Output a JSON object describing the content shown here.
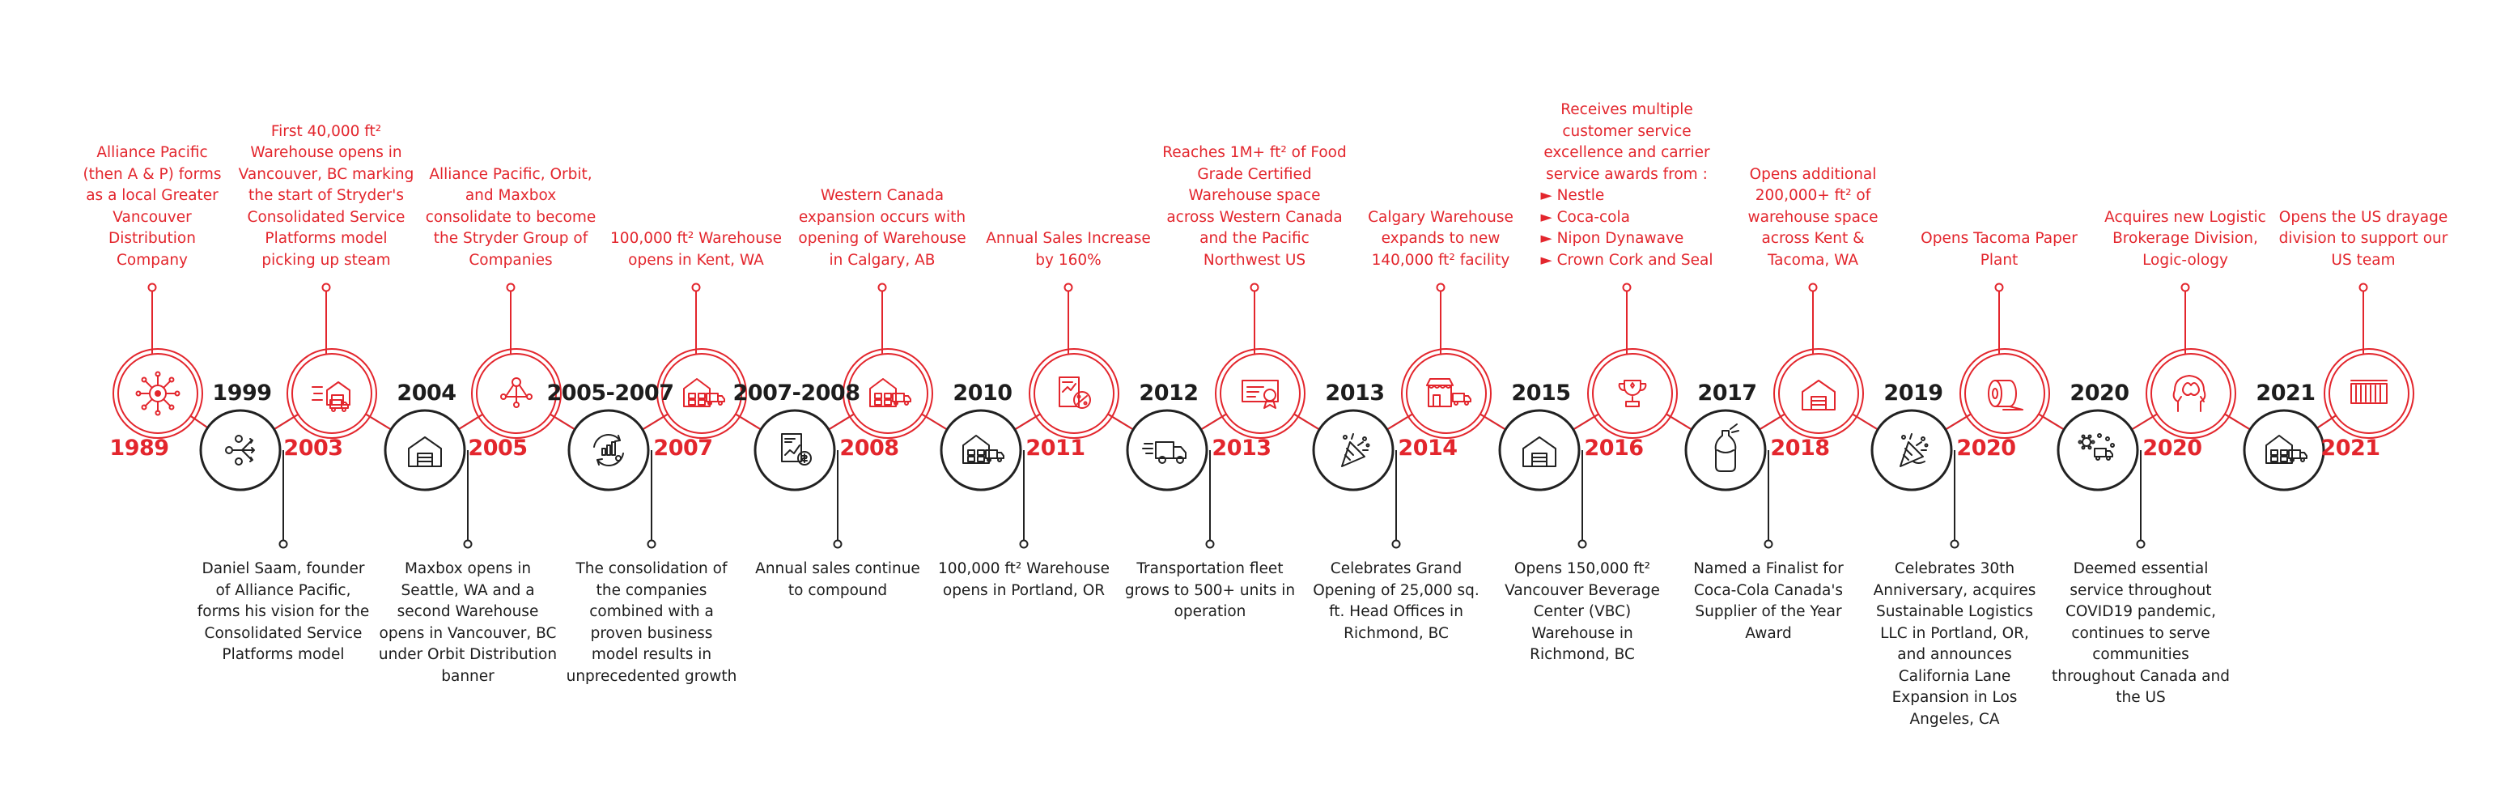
{
  "colors": {
    "red": "#e3262d",
    "black": "#222222"
  },
  "events": [
    {
      "year": "1989",
      "color": "red",
      "pos": "up",
      "icon": "ships-wheel-network-icon",
      "lines": [
        "Alliance Pacific",
        "(then A & P) forms",
        "as a local Greater",
        "Vancouver",
        "Distribution",
        "Company"
      ]
    },
    {
      "year": "1999",
      "color": "black",
      "pos": "down",
      "icon": "vision-arrows-icon",
      "lines": [
        "Daniel Saam, founder",
        "of Alliance Pacific,",
        "forms his vision for the",
        "Consolidated Service",
        "Platforms model"
      ]
    },
    {
      "year": "2003",
      "color": "red",
      "pos": "up",
      "icon": "warehouse-launch-icon",
      "lines": [
        "First 40,000 ft² ",
        "Warehouse opens in",
        "Vancouver, BC marking",
        "the start of Stryder's",
        "Consolidated Service",
        "Platforms model",
        "picking up steam"
      ]
    },
    {
      "year": "2004",
      "color": "black",
      "pos": "down",
      "icon": "warehouse-icon",
      "lines": [
        "Maxbox opens in",
        "Seattle, WA and a",
        "second Warehouse",
        "opens in Vancouver, BC",
        "under Orbit Distribution",
        "banner"
      ]
    },
    {
      "year": "2005",
      "color": "red",
      "pos": "up",
      "icon": "merge-network-icon",
      "lines": [
        "Alliance Pacific, Orbit,",
        "and Maxbox",
        "consolidate to become",
        "the Stryder Group of",
        "Companies"
      ]
    },
    {
      "year": "2005-2007",
      "color": "black",
      "pos": "down",
      "icon": "growth-cycle-icon",
      "lines": [
        "The consolidation of",
        "the companies",
        "combined with a",
        "proven business",
        "model results in",
        "unprecedented growth"
      ]
    },
    {
      "year": "2007",
      "color": "red",
      "pos": "up",
      "icon": "warehouse-truck-icon",
      "lines": [
        "100,000 ft² Warehouse",
        "opens in Kent, WA"
      ]
    },
    {
      "year": "2007-2008",
      "color": "black",
      "pos": "down",
      "icon": "sales-report-icon",
      "lines": [
        "Annual sales continue",
        "to compound"
      ]
    },
    {
      "year": "2008",
      "color": "red",
      "pos": "up",
      "icon": "warehouse-truck-icon",
      "lines": [
        "Western Canada",
        "expansion occurs with",
        "opening of Warehouse",
        "in Calgary, AB"
      ]
    },
    {
      "year": "2010",
      "color": "black",
      "pos": "down",
      "icon": "warehouse-truck-icon",
      "lines": [
        "100,000 ft² Warehouse",
        "opens in Portland, OR"
      ]
    },
    {
      "year": "2011",
      "color": "red",
      "pos": "up",
      "icon": "sales-percent-icon",
      "lines": [
        "Annual Sales Increase",
        "by 160%"
      ]
    },
    {
      "year": "2012",
      "color": "black",
      "pos": "down",
      "icon": "delivery-truck-icon",
      "lines": [
        "Transportation fleet",
        "grows to 500+ units in",
        "operation"
      ]
    },
    {
      "year": "2013",
      "color": "red",
      "pos": "up",
      "icon": "certificate-icon",
      "lines": [
        "Reaches 1M+ ft² of Food",
        "Grade Certified",
        "Warehouse space",
        "across Western Canada",
        "and the Pacific",
        "Northwest US"
      ]
    },
    {
      "year": "2013",
      "color": "black",
      "pos": "down",
      "icon": "party-popper-icon",
      "lines": [
        "Celebrates Grand",
        "Opening of 25,000 sq.",
        "ft. Head Offices in",
        "Richmond, BC"
      ]
    },
    {
      "year": "2014",
      "color": "red",
      "pos": "up",
      "icon": "storefront-truck-icon",
      "lines": [
        "Calgary Warehouse",
        "expands to new",
        "140,000 ft² facility"
      ]
    },
    {
      "year": "2015",
      "color": "black",
      "pos": "down",
      "icon": "warehouse-icon",
      "lines": [
        "Opens 150,000 ft²",
        "Vancouver Beverage",
        "Center (VBC)",
        "Warehouse in",
        "Richmond, BC"
      ]
    },
    {
      "year": "2016",
      "color": "red",
      "pos": "up",
      "icon": "trophy-icon",
      "lines": [
        "Receives multiple",
        "customer service",
        "excellence and carrier",
        "service awards from :"
      ],
      "bullets": [
        "► Nestle",
        "► Coca-cola",
        "► Nipon Dynawave",
        "► Crown Cork and Seal"
      ]
    },
    {
      "year": "2017",
      "color": "black",
      "pos": "down",
      "icon": "bottle-icon",
      "lines": [
        "Named a Finalist for",
        "Coca-Cola Canada's",
        "Supplier of the Year",
        "Award"
      ]
    },
    {
      "year": "2018",
      "color": "red",
      "pos": "up",
      "icon": "warehouse-icon",
      "lines": [
        "Opens additional",
        "200,000+ ft² of",
        "warehouse space",
        "across Kent &",
        "Tacoma, WA"
      ]
    },
    {
      "year": "2019",
      "color": "black",
      "pos": "down",
      "icon": "anniversary-popper-icon",
      "lines": [
        "Celebrates 30th",
        "Anniversary, acquires",
        "Sustainable Logistics",
        "LLC in Portland, OR,",
        "and announces",
        "California Lane",
        "Expansion in Los",
        "Angeles, CA"
      ]
    },
    {
      "year": "2020",
      "color": "red",
      "pos": "up",
      "icon": "paper-roll-icon",
      "lines": [
        "Opens Tacoma Paper",
        "Plant"
      ]
    },
    {
      "year": "2020",
      "color": "black",
      "pos": "down",
      "icon": "virus-truck-icon",
      "lines": [
        "Deemed essential",
        "service throughout",
        "COVID19 pandemic,",
        "continues to serve",
        "communities",
        "throughout Canada and",
        "the US"
      ]
    },
    {
      "year": "2020",
      "color": "red",
      "pos": "up",
      "icon": "brain-head-icon",
      "lines": [
        "Acquires new Logistic",
        "Brokerage Division,",
        "Logic-ology"
      ]
    },
    {
      "year": "2021",
      "color": "black",
      "pos": "down",
      "icon": "warehouse-truck-icon",
      "lines": []
    },
    {
      "year": "2021",
      "color": "red",
      "pos": "up",
      "icon": "shipping-container-icon",
      "lines": [
        "Opens the US drayage",
        "division to support our",
        "US team"
      ]
    }
  ]
}
